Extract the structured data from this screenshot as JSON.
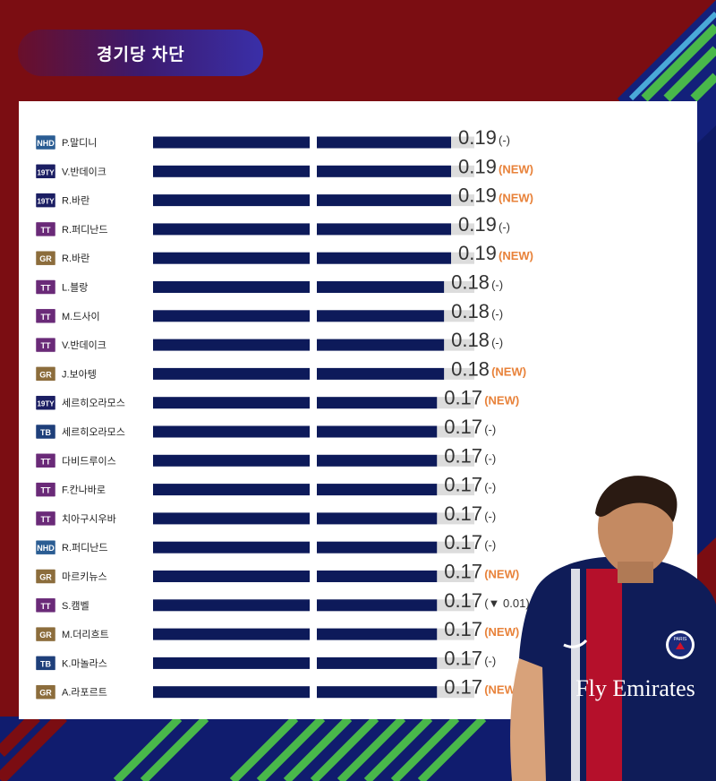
{
  "title": "경기당 차단",
  "colors": {
    "bar": "#0d1a5a",
    "track": "#dcdcdc",
    "value_text": "#333333",
    "change_new": "#e8823a",
    "change_neutral": "#333333",
    "badge_NHD": "#2b5d93",
    "badge_19TY": "#1b1e63",
    "badge_TT": "#6a2a78",
    "badge_GR": "#8c6d3c",
    "badge_TB": "#1e3f7a"
  },
  "chart_data": {
    "type": "bar",
    "orientation": "horizontal",
    "title": "경기당 차단",
    "rows": [
      {
        "season": "NHD",
        "name": "P.말디니",
        "value": 0.19,
        "change": "(-)"
      },
      {
        "season": "19TY",
        "name": "V.반데이크",
        "value": 0.19,
        "change": "(NEW)"
      },
      {
        "season": "19TY",
        "name": "R.바란",
        "value": 0.19,
        "change": "(NEW)"
      },
      {
        "season": "TT",
        "name": "R.퍼디난드",
        "value": 0.19,
        "change": "(-)"
      },
      {
        "season": "GR",
        "name": "R.바란",
        "value": 0.19,
        "change": "(NEW)"
      },
      {
        "season": "TT",
        "name": "L.블랑",
        "value": 0.18,
        "change": "(-)"
      },
      {
        "season": "TT",
        "name": "M.드사이",
        "value": 0.18,
        "change": "(-)"
      },
      {
        "season": "TT",
        "name": "V.반데이크",
        "value": 0.18,
        "change": "(-)"
      },
      {
        "season": "GR",
        "name": "J.보아텡",
        "value": 0.18,
        "change": "(NEW)"
      },
      {
        "season": "19TY",
        "name": "세르히오라모스",
        "value": 0.17,
        "change": "(NEW)"
      },
      {
        "season": "TB",
        "name": "세르히오라모스",
        "value": 0.17,
        "change": "(-)"
      },
      {
        "season": "TT",
        "name": "다비드루이스",
        "value": 0.17,
        "change": "(-)"
      },
      {
        "season": "TT",
        "name": "F.칸나바로",
        "value": 0.17,
        "change": "(-)"
      },
      {
        "season": "TT",
        "name": "치아구시우바",
        "value": 0.17,
        "change": "(-)"
      },
      {
        "season": "NHD",
        "name": "R.퍼디난드",
        "value": 0.17,
        "change": "(-)"
      },
      {
        "season": "GR",
        "name": "마르키뉴스",
        "value": 0.17,
        "change": "(NEW)"
      },
      {
        "season": "TT",
        "name": "S.캠벨",
        "value": 0.17,
        "change": "(▼ 0.01)"
      },
      {
        "season": "GR",
        "name": "M.더리흐트",
        "value": 0.17,
        "change": "(NEW)"
      },
      {
        "season": "TB",
        "name": "K.마놀라스",
        "value": 0.17,
        "change": "(-)"
      },
      {
        "season": "GR",
        "name": "A.라포르트",
        "value": 0.17,
        "change": "(NEW)"
      }
    ]
  },
  "player_image": {
    "description_icon": "player-photo",
    "shirt_text": "Fly Emirates",
    "badge_text": "PARIS"
  }
}
